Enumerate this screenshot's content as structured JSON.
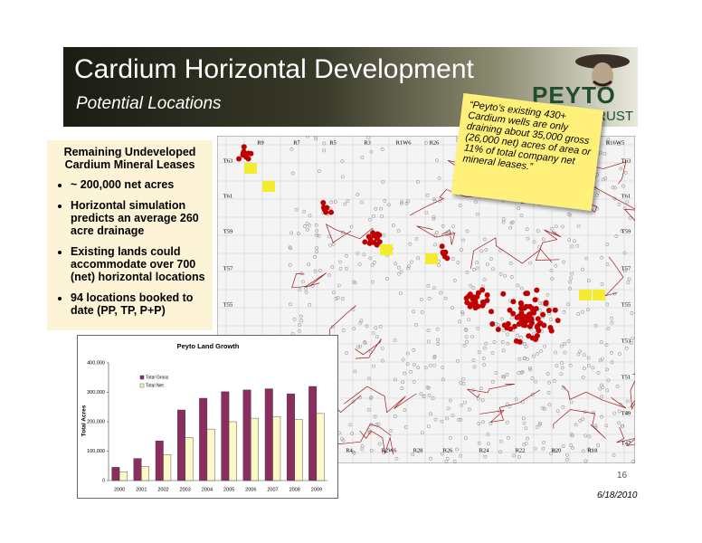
{
  "header": {
    "title": "Cardium Horizontal Development",
    "subtitle": "Potential Locations",
    "logo": "PEYTO",
    "logo_sub": "TRUST"
  },
  "sidebar": {
    "heading": "Remaining Undeveloped Cardium Mineral Leases",
    "bullets": [
      "~ 200,000 net acres",
      "Horizontal simulation predicts an average 260 acre drainage",
      "Existing lands could accommodate over 700 (net) horizontal locations",
      "94 locations booked to date (PP, TP, P+P)"
    ]
  },
  "note": "“Peyto’s existing 430+ Cardium wells are only draining about 35,000 gross (26,000 net) acres of area or 11% of total company net mineral leases.”",
  "map": {
    "top_labels": [
      "R9",
      "R7",
      "R5",
      "R3",
      "R1W6",
      "R26",
      "R16W5"
    ],
    "bottom_labels": [
      "R4",
      "R2W6",
      "R28",
      "R26",
      "R24",
      "R22",
      "R20",
      "R18"
    ],
    "left_labels": [
      "T63",
      "T61",
      "T59",
      "T57",
      "T55"
    ],
    "right_labels": [
      "T63",
      "T61",
      "T59",
      "T57",
      "T55",
      "T53",
      "T51",
      "T49",
      "T47"
    ]
  },
  "chart_data": {
    "type": "bar",
    "title": "Peyto Land Growth",
    "y_label": "Total Acres",
    "categories": [
      "2000",
      "2001",
      "2002",
      "2003",
      "2004",
      "2005",
      "2006",
      "2007",
      "2008",
      "2009"
    ],
    "series": [
      {
        "name": "Total Gross",
        "color": "#8b2d5e",
        "values": [
          45000,
          75000,
          135000,
          240000,
          280000,
          302000,
          308000,
          312000,
          295000,
          320000
        ]
      },
      {
        "name": "Total Net",
        "color": "#fdf8c8",
        "values": [
          30000,
          48000,
          88000,
          147000,
          175000,
          200000,
          212000,
          218000,
          208000,
          228000
        ]
      }
    ],
    "ylim": [
      0,
      400000
    ],
    "yticks": [
      0,
      {
        "value": 100000,
        "label": "100,000"
      },
      {
        "value": 200000,
        "label": "200,000"
      },
      {
        "value": 300000,
        "label": "300,000"
      },
      {
        "value": 400000,
        "label": "400,000"
      }
    ]
  },
  "footer": {
    "page": "16",
    "date": "6/18/2010"
  }
}
